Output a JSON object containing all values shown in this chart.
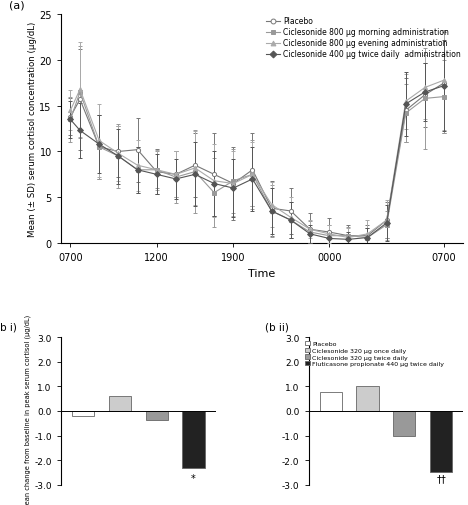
{
  "top_panel": {
    "title": "(a)",
    "xlabel": "Time",
    "ylabel": "Mean (± SD) serum cortisol concentration (µg/dL)",
    "ylim": [
      0,
      25
    ],
    "xtick_labels": [
      "0700",
      "1200",
      "1900",
      "0000",
      "0700"
    ],
    "legend": [
      "Placebo",
      "Ciclesonide 800 µg morning administration",
      "Ciclesonide 800 µg evening administration",
      "Ciclesonide 400 µg twice daily  administration"
    ],
    "markers": [
      "o",
      "s",
      "^",
      "D"
    ],
    "x_positions": [
      0,
      0.5,
      1.5,
      2.5,
      3.5,
      4.5,
      5.5,
      6.5,
      7.5,
      8.5,
      9.5,
      10.5,
      11.5,
      12.5,
      13.5,
      14.5,
      15.5,
      16.5,
      17.5,
      18.5,
      19.5
    ],
    "xtick_positions": [
      0,
      4.5,
      8.5,
      13.5,
      19.5
    ],
    "series": [
      {
        "name": "Placebo",
        "y": [
          13.8,
          15.7,
          10.5,
          10.0,
          10.2,
          7.8,
          7.5,
          8.5,
          7.5,
          6.5,
          8.0,
          3.8,
          3.5,
          1.5,
          1.2,
          0.8,
          0.8,
          2.5,
          14.5,
          16.2,
          17.5
        ],
        "yerr": [
          2.0,
          5.5,
          3.5,
          2.8,
          3.5,
          2.5,
          2.5,
          3.5,
          4.5,
          4.0,
          4.0,
          3.0,
          2.5,
          1.8,
          1.5,
          1.2,
          1.2,
          2.0,
          3.5,
          3.5,
          5.5
        ]
      },
      {
        "name": "Ciclesonide 800 ug morning",
        "y": [
          13.5,
          16.5,
          10.5,
          9.5,
          8.0,
          8.0,
          7.2,
          7.8,
          5.5,
          6.8,
          7.5,
          3.5,
          2.5,
          1.2,
          0.8,
          0.8,
          0.6,
          2.0,
          14.2,
          15.8,
          16.0
        ],
        "yerr": [
          2.5,
          5.0,
          3.5,
          3.5,
          2.5,
          2.0,
          2.8,
          4.5,
          3.8,
          3.5,
          3.8,
          2.8,
          2.0,
          1.2,
          1.2,
          1.0,
          1.0,
          1.5,
          3.2,
          5.5,
          4.0
        ]
      },
      {
        "name": "Ciclesonide 800 ug evening",
        "y": [
          14.5,
          16.8,
          11.2,
          9.8,
          8.5,
          8.0,
          7.5,
          8.2,
          6.8,
          6.5,
          7.5,
          4.2,
          2.8,
          1.5,
          1.0,
          0.6,
          1.0,
          2.5,
          15.5,
          17.0,
          17.8
        ],
        "yerr": [
          2.2,
          5.2,
          4.0,
          3.0,
          2.8,
          2.2,
          2.5,
          4.0,
          4.0,
          3.5,
          3.5,
          2.5,
          2.2,
          1.0,
          1.0,
          1.0,
          1.5,
          2.2,
          3.0,
          3.5,
          5.5
        ]
      },
      {
        "name": "Ciclesonide 400 ug twice daily",
        "y": [
          13.5,
          12.3,
          10.8,
          9.5,
          8.0,
          7.5,
          7.0,
          7.5,
          6.5,
          6.0,
          7.0,
          3.5,
          2.5,
          1.0,
          0.5,
          0.4,
          0.6,
          2.2,
          15.2,
          16.5,
          17.2
        ],
        "yerr": [
          2.0,
          3.0,
          3.2,
          3.0,
          2.5,
          2.2,
          2.2,
          3.5,
          3.5,
          3.2,
          3.5,
          2.5,
          2.0,
          1.0,
          0.8,
          0.8,
          1.0,
          2.0,
          3.5,
          3.2,
          5.0
        ]
      }
    ],
    "line_colors": [
      "#777777",
      "#999999",
      "#aaaaaa",
      "#555555"
    ],
    "open_markers": [
      true,
      false,
      false,
      false
    ]
  },
  "bottom_left": {
    "title": "(b i)",
    "ylabel": "Mean change from baseline in peak serum cortisol (µg/dL)",
    "ylim": [
      -3.0,
      3.0
    ],
    "yticks": [
      -3.0,
      -2.0,
      -1.0,
      0.0,
      1.0,
      2.0,
      3.0
    ],
    "ytick_labels": [
      "-3.0",
      "-2.0",
      "-1.0",
      "0.0",
      "1.0",
      "2.0",
      "3.0"
    ],
    "values": [
      -0.2,
      0.6,
      -0.35,
      -2.3
    ],
    "colors": [
      "#ffffff",
      "#cccccc",
      "#999999",
      "#222222"
    ],
    "annotation": "*"
  },
  "bottom_right": {
    "title": "(b ii)",
    "ylim": [
      -3.0,
      3.0
    ],
    "yticks": [
      -3.0,
      -2.0,
      -1.0,
      0.0,
      1.0,
      2.0,
      3.0
    ],
    "ytick_labels": [
      "-3.0",
      "-2.0",
      "-1.0",
      "0.0",
      "1.0",
      "2.0",
      "3.0"
    ],
    "values": [
      0.75,
      1.0,
      -1.0,
      -2.5
    ],
    "colors": [
      "#ffffff",
      "#cccccc",
      "#999999",
      "#222222"
    ],
    "legend_labels": [
      "Placebo",
      "Ciclesonide 320 µg once daily",
      "Ciclesonide 320 µg twice daily",
      "Fluticasone propionate 440 µg twice daily"
    ],
    "legend_colors": [
      "#ffffff",
      "#cccccc",
      "#999999",
      "#222222"
    ],
    "annotation": "††"
  }
}
